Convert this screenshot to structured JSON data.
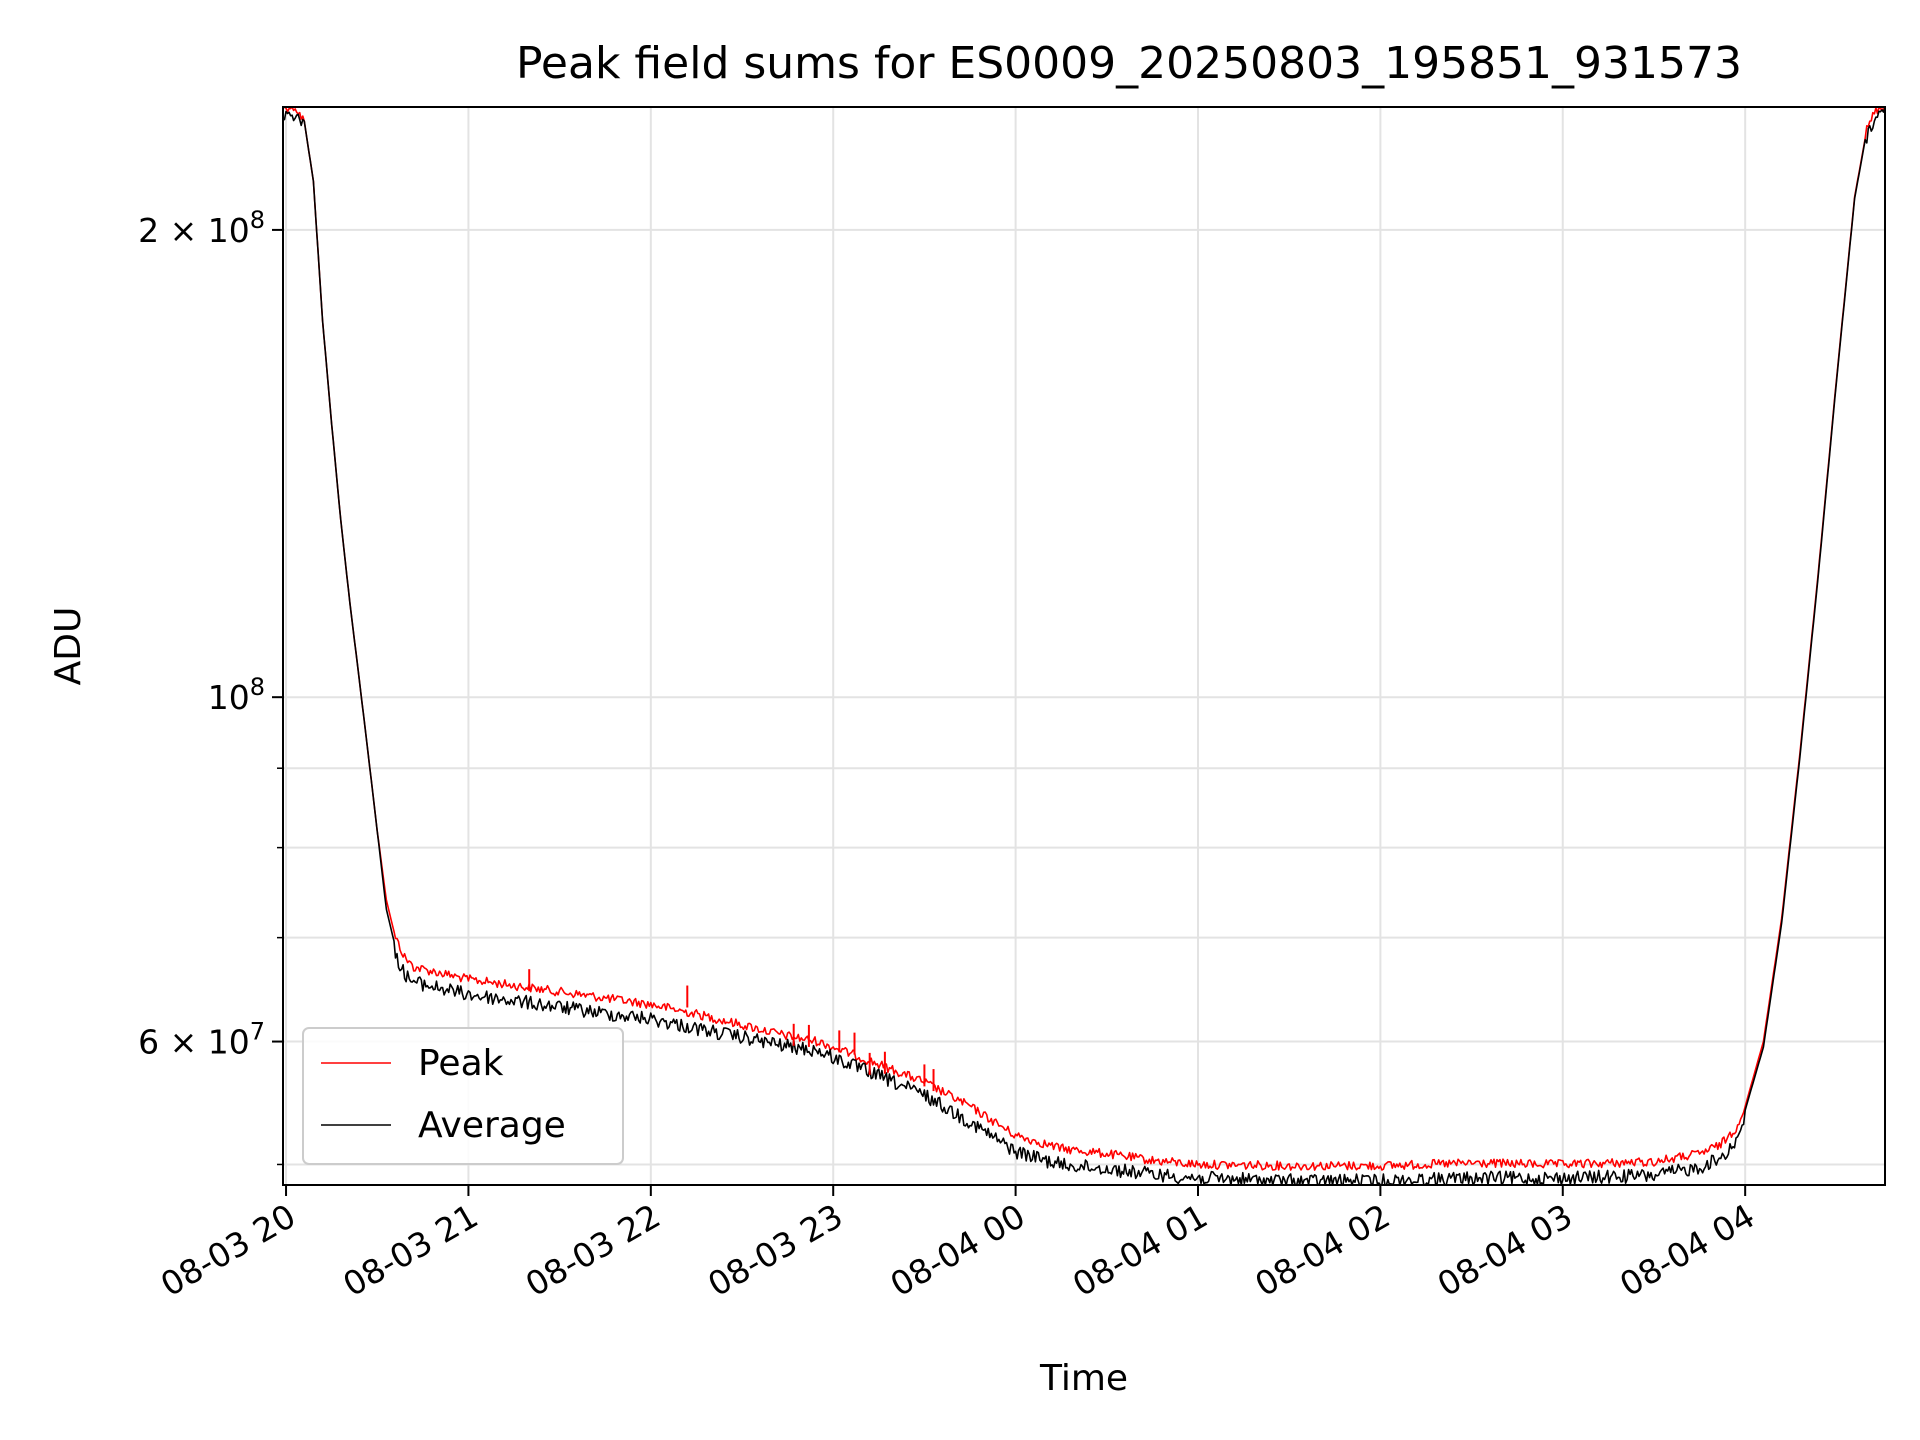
{
  "chart_data": {
    "type": "line",
    "title": "Peak field sums for ES0009_20250803_195851_931573",
    "xlabel": "Time",
    "ylabel": "ADU",
    "yscale": "log",
    "ylim": [
      48500000,
      240000000
    ],
    "xlim": [
      "2025-08-03T19:59:00",
      "2025-08-04T04:46:00"
    ],
    "grid": true,
    "legend_position": "lower-left",
    "x_ticks": [
      {
        "x": "2025-08-03T20:00",
        "label": "08-03 20"
      },
      {
        "x": "2025-08-03T21:00",
        "label": "08-03 21"
      },
      {
        "x": "2025-08-03T22:00",
        "label": "08-03 22"
      },
      {
        "x": "2025-08-03T23:00",
        "label": "08-03 23"
      },
      {
        "x": "2025-08-04T00:00",
        "label": "08-04 00"
      },
      {
        "x": "2025-08-04T01:00",
        "label": "08-04 01"
      },
      {
        "x": "2025-08-04T02:00",
        "label": "08-04 02"
      },
      {
        "x": "2025-08-04T03:00",
        "label": "08-04 03"
      },
      {
        "x": "2025-08-04T04:00",
        "label": "08-04 04"
      }
    ],
    "y_major_ticks": [
      {
        "value": 60000000,
        "base": "6 × 10",
        "exp": "7"
      },
      {
        "value": 100000000,
        "base": "10",
        "exp": "8"
      },
      {
        "value": 200000000,
        "base": "2 × 10",
        "exp": "8"
      }
    ],
    "y_minor_ticks": [
      50000000,
      70000000,
      80000000,
      90000000
    ],
    "x": [
      "2025-08-03T19:59",
      "2025-08-03T20:03",
      "2025-08-03T20:06",
      "2025-08-03T20:09",
      "2025-08-03T20:12",
      "2025-08-03T20:15",
      "2025-08-03T20:18",
      "2025-08-03T20:21",
      "2025-08-03T20:24",
      "2025-08-03T20:27",
      "2025-08-03T20:30",
      "2025-08-03T20:33",
      "2025-08-03T20:36",
      "2025-08-03T20:39",
      "2025-08-03T20:42",
      "2025-08-03T20:45",
      "2025-08-03T20:48",
      "2025-08-03T20:51",
      "2025-08-03T20:54",
      "2025-08-03T21:00",
      "2025-08-03T21:15",
      "2025-08-03T21:30",
      "2025-08-03T21:45",
      "2025-08-03T22:00",
      "2025-08-03T22:15",
      "2025-08-03T22:30",
      "2025-08-03T22:45",
      "2025-08-03T22:55",
      "2025-08-03T23:00",
      "2025-08-03T23:15",
      "2025-08-03T23:30",
      "2025-08-03T23:45",
      "2025-08-04T00:00",
      "2025-08-04T00:15",
      "2025-08-04T00:30",
      "2025-08-04T00:45",
      "2025-08-04T01:00",
      "2025-08-04T01:30",
      "2025-08-04T02:00",
      "2025-08-04T02:30",
      "2025-08-04T03:00",
      "2025-08-04T03:30",
      "2025-08-04T03:45",
      "2025-08-04T03:52",
      "2025-08-04T03:57",
      "2025-08-04T04:00",
      "2025-08-04T04:06",
      "2025-08-04T04:12",
      "2025-08-04T04:18",
      "2025-08-04T04:24",
      "2025-08-04T04:30",
      "2025-08-04T04:36",
      "2025-08-04T04:40",
      "2025-08-04T04:43",
      "2025-08-04T04:46"
    ],
    "series": [
      {
        "name": "Peak",
        "color": "#ff0000",
        "values": [
          240000000,
          240000000,
          235000000,
          215000000,
          175000000,
          150000000,
          130000000,
          115000000,
          103000000,
          92000000,
          82000000,
          74000000,
          70000000,
          68000000,
          67000000,
          66800000,
          66600000,
          66400000,
          66200000,
          65800000,
          65200000,
          64600000,
          64000000,
          63400000,
          62500000,
          61500000,
          60500000,
          60000000,
          59500000,
          58000000,
          56500000,
          54500000,
          52200000,
          51200000,
          50800000,
          50300000,
          50000000,
          49900000,
          49900000,
          50100000,
          50000000,
          50200000,
          50800000,
          51500000,
          52800000,
          54500000,
          60000000,
          72000000,
          92000000,
          120000000,
          160000000,
          210000000,
          232000000,
          239000000,
          240000000
        ]
      },
      {
        "name": "Average",
        "color": "#000000",
        "values": [
          240000000,
          240000000,
          235000000,
          215000000,
          175000000,
          150000000,
          130000000,
          115000000,
          103000000,
          92000000,
          82000000,
          73000000,
          69000000,
          67000000,
          66200000,
          66000000,
          65800000,
          65600000,
          65400000,
          65000000,
          64400000,
          63800000,
          63200000,
          62700000,
          61800000,
          61000000,
          60200000,
          59800000,
          59200000,
          57600000,
          56000000,
          53800000,
          51500000,
          50500000,
          50200000,
          49800000,
          49500000,
          49300000,
          49300000,
          49500000,
          49500000,
          49700000,
          50300000,
          51000000,
          52300000,
          54200000,
          59500000,
          71500000,
          91500000,
          119500000,
          159500000,
          209500000,
          231500000,
          239000000,
          240000000
        ]
      }
    ],
    "annotations": [
      {
        "x": "2025-08-03T21:20",
        "value": 66800000
      },
      {
        "x": "2025-08-03T22:12",
        "value": 65200000
      },
      {
        "x": "2025-08-03T22:47",
        "value": 61600000
      },
      {
        "x": "2025-08-03T22:52",
        "value": 61500000
      },
      {
        "x": "2025-08-03T23:02",
        "value": 61000000
      },
      {
        "x": "2025-08-03T23:07",
        "value": 60800000
      },
      {
        "x": "2025-08-03T23:12",
        "value": 59000000
      },
      {
        "x": "2025-08-03T23:17",
        "value": 59100000
      },
      {
        "x": "2025-08-03T23:30",
        "value": 58000000
      },
      {
        "x": "2025-08-03T23:33",
        "value": 57600000
      }
    ]
  }
}
